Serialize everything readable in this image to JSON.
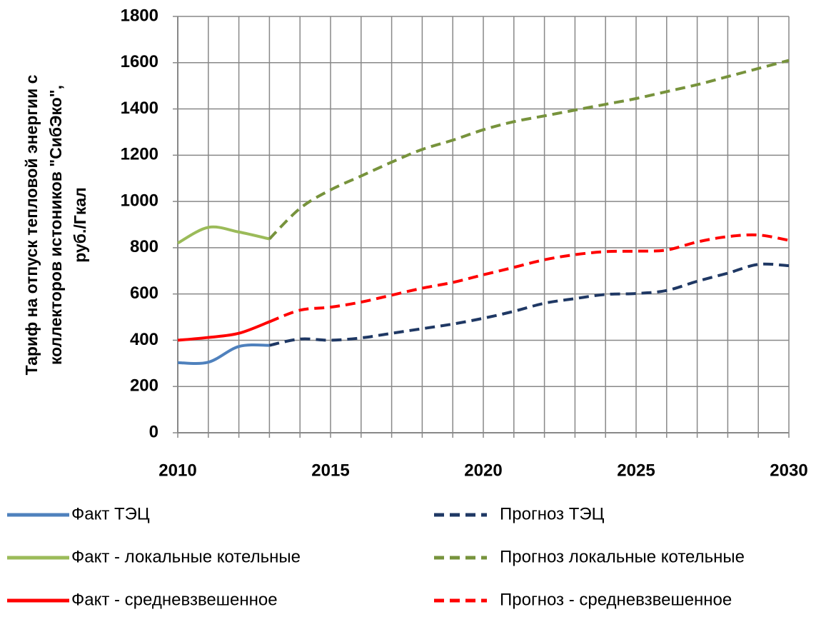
{
  "chart_data": {
    "type": "line",
    "ylabel": [
      "Тариф на отпуск тепловой  энергии с",
      "коллекторов истоников \"СибЭко\",",
      "руб./Гкал"
    ],
    "x": [
      2010,
      2011,
      2012,
      2013,
      2014,
      2015,
      2016,
      2017,
      2018,
      2019,
      2020,
      2021,
      2022,
      2023,
      2024,
      2025,
      2026,
      2027,
      2028,
      2029,
      2030
    ],
    "xlim": [
      2010,
      2030
    ],
    "xticks": [
      2010,
      2015,
      2020,
      2025,
      2030
    ],
    "xminorticks": [
      2011,
      2012,
      2013,
      2014,
      2016,
      2017,
      2018,
      2019,
      2021,
      2022,
      2023,
      2024,
      2026,
      2027,
      2028,
      2029
    ],
    "ylim": [
      0,
      1800
    ],
    "yticks": [
      0,
      200,
      400,
      600,
      800,
      1000,
      1200,
      1400,
      1600,
      1800
    ],
    "grid": true,
    "series": [
      {
        "name": "Факт ТЭЦ",
        "color": "#4f81bd",
        "dashed": false,
        "values": [
          303,
          305,
          373,
          378,
          null,
          null,
          null,
          null,
          null,
          null,
          null,
          null,
          null,
          null,
          null,
          null,
          null,
          null,
          null,
          null,
          null
        ]
      },
      {
        "name": "Прогноз ТЭЦ",
        "color": "#1f3864",
        "dashed": true,
        "values": [
          null,
          null,
          null,
          378,
          405,
          400,
          410,
          430,
          450,
          470,
          495,
          525,
          560,
          580,
          598,
          602,
          615,
          655,
          690,
          728,
          722
        ]
      },
      {
        "name": "Факт - локальные котельные",
        "color": "#9bbb59",
        "dashed": false,
        "values": [
          820,
          888,
          868,
          838,
          null,
          null,
          null,
          null,
          null,
          null,
          null,
          null,
          null,
          null,
          null,
          null,
          null,
          null,
          null,
          null,
          null
        ]
      },
      {
        "name": "Прогноз локальные котельные",
        "color": "#77933c",
        "dashed": true,
        "values": [
          null,
          null,
          null,
          838,
          970,
          1050,
          1110,
          1170,
          1225,
          1265,
          1310,
          1345,
          1370,
          1395,
          1420,
          1445,
          1475,
          1505,
          1540,
          1575,
          1610
        ]
      },
      {
        "name": "Факт - средневзвешенное",
        "color": "#ff0000",
        "dashed": false,
        "values": [
          400,
          412,
          430,
          480,
          null,
          null,
          null,
          null,
          null,
          null,
          null,
          null,
          null,
          null,
          null,
          null,
          null,
          null,
          null,
          null,
          null
        ]
      },
      {
        "name": "Прогноз - средневзвешенное",
        "color": "#ff0000",
        "dashed": true,
        "values": [
          null,
          null,
          null,
          480,
          530,
          543,
          565,
          595,
          625,
          650,
          683,
          715,
          748,
          770,
          783,
          785,
          790,
          825,
          848,
          855,
          832
        ]
      }
    ]
  }
}
